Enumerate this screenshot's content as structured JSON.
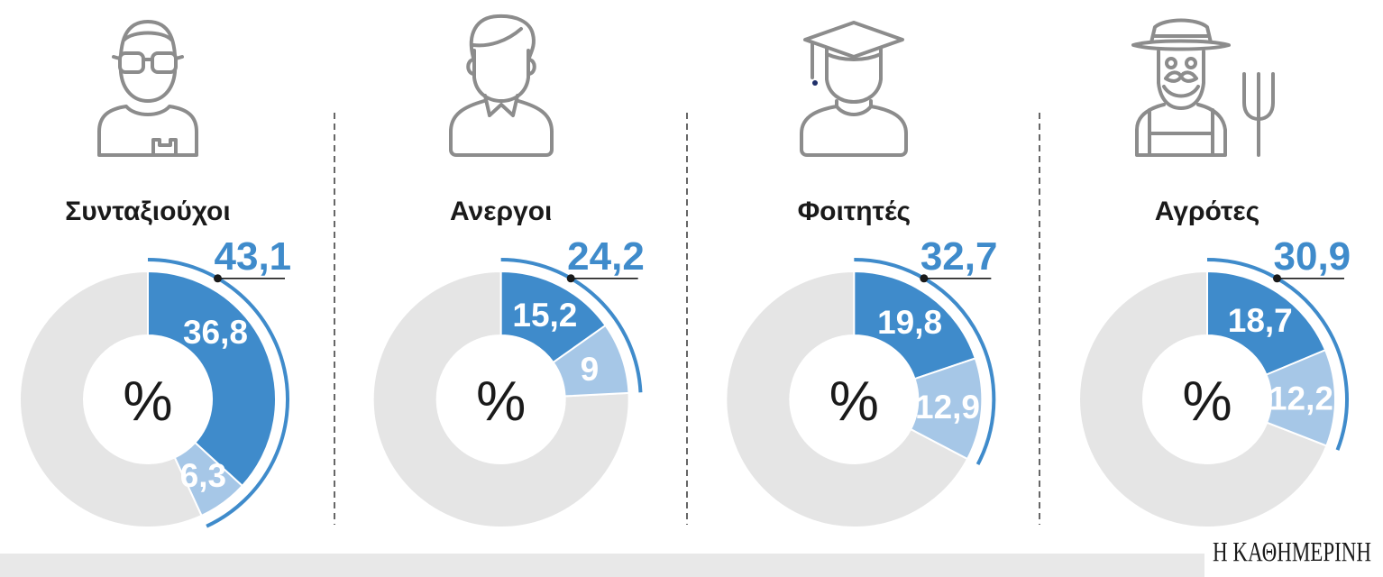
{
  "colors": {
    "primary_segment": "#3f8bcb",
    "secondary_segment": "#a6c7e7",
    "remainder": "#e5e5e5",
    "total_arc": "#3f8bcb",
    "total_label": "#3f8bcb",
    "marker": "#1a1a1a",
    "icon_stroke": "#8c8c8c",
    "text": "#1a1a1a",
    "footer_band": "#e8e8e8"
  },
  "icons": [
    "pensioner-icon",
    "unemployed-person-icon",
    "graduate-student-icon",
    "farmer-icon"
  ],
  "chart_data": [
    {
      "type": "pie",
      "variant": "donut",
      "title": "Συνταξιούχοι",
      "unit": "%",
      "total": 43.1,
      "total_label": "43,1",
      "values": [
        36.8,
        6.3
      ],
      "value_labels": [
        "36,8",
        "6,3"
      ]
    },
    {
      "type": "pie",
      "variant": "donut",
      "title": "Ανεργοι",
      "unit": "%",
      "total": 24.2,
      "total_label": "24,2",
      "values": [
        15.2,
        9
      ],
      "value_labels": [
        "15,2",
        "9"
      ]
    },
    {
      "type": "pie",
      "variant": "donut",
      "title": "Φοιτητές",
      "unit": "%",
      "total": 32.7,
      "total_label": "32,7",
      "values": [
        19.8,
        12.9
      ],
      "value_labels": [
        "19,8",
        "12,9"
      ]
    },
    {
      "type": "pie",
      "variant": "donut",
      "title": "Αγρότες",
      "unit": "%",
      "total": 30.9,
      "total_label": "30,9",
      "values": [
        18.7,
        12.2
      ],
      "value_labels": [
        "18,7",
        "12,2"
      ]
    }
  ],
  "footer": {
    "publisher": "Η ΚΑΘΗΜΕΡΙΝΗ"
  }
}
